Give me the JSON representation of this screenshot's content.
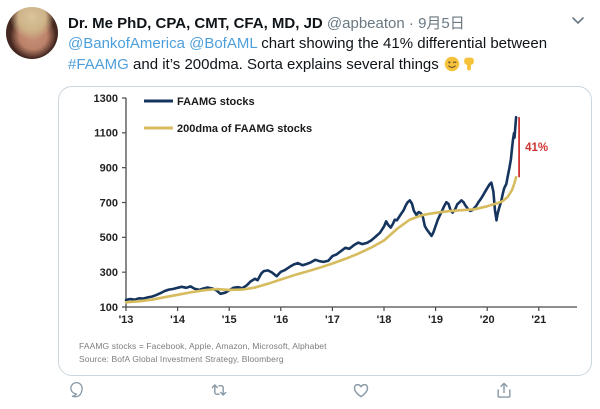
{
  "tweet": {
    "author_name": "Dr. Me PhD, CPA, CMT, CFA, MD, JD",
    "author_handle": "@apbeaton",
    "separator": "·",
    "date": "9月5日",
    "body": {
      "mentions": "@BankofAmerica @BofAML",
      "text_after_mentions": " chart showing the 41% differential between ",
      "hashtag": "#FAAMG",
      "text_after_hashtag": " and it’s 200dma. Sorta explains several things ",
      "emojis": [
        "winking-face",
        "backhand-index-pointing-down"
      ]
    }
  },
  "chart_data": {
    "type": "line",
    "title": "",
    "xlabel": "",
    "ylabel": "",
    "ylim": [
      100,
      1300
    ],
    "xlim": [
      2013,
      2021.75
    ],
    "grid": false,
    "legend_position": "top-left",
    "y_ticks": [
      1300,
      1100,
      900,
      700,
      500,
      300,
      100
    ],
    "x_tick_labels": [
      "'13",
      "'14",
      "'15",
      "'16",
      "'17",
      "'18",
      "'19",
      "'20",
      "'21"
    ],
    "x_tick_years": [
      2013,
      2014,
      2015,
      2016,
      2017,
      2018,
      2019,
      2020,
      2021
    ],
    "legend": [
      {
        "label": "FAAMG stocks",
        "color": "#16355e"
      },
      {
        "label": "200dma of FAAMG stocks",
        "color": "#d6bc5e"
      }
    ],
    "series": [
      {
        "name": "FAAMG stocks",
        "color": "#16355e",
        "width": 2.6,
        "points": [
          [
            2013.0,
            140
          ],
          [
            2013.08,
            146
          ],
          [
            2013.17,
            142
          ],
          [
            2013.25,
            150
          ],
          [
            2013.33,
            148
          ],
          [
            2013.42,
            155
          ],
          [
            2013.5,
            160
          ],
          [
            2013.58,
            168
          ],
          [
            2013.67,
            180
          ],
          [
            2013.75,
            192
          ],
          [
            2013.83,
            200
          ],
          [
            2013.92,
            204
          ],
          [
            2014.0,
            210
          ],
          [
            2014.08,
            216
          ],
          [
            2014.17,
            210
          ],
          [
            2014.25,
            218
          ],
          [
            2014.33,
            205
          ],
          [
            2014.42,
            198
          ],
          [
            2014.5,
            206
          ],
          [
            2014.58,
            212
          ],
          [
            2014.67,
            206
          ],
          [
            2014.75,
            196
          ],
          [
            2014.83,
            176
          ],
          [
            2014.92,
            182
          ],
          [
            2015.0,
            196
          ],
          [
            2015.08,
            210
          ],
          [
            2015.17,
            214
          ],
          [
            2015.25,
            208
          ],
          [
            2015.33,
            222
          ],
          [
            2015.42,
            248
          ],
          [
            2015.5,
            262
          ],
          [
            2015.55,
            254
          ],
          [
            2015.62,
            292
          ],
          [
            2015.67,
            306
          ],
          [
            2015.75,
            310
          ],
          [
            2015.83,
            298
          ],
          [
            2015.92,
            276
          ],
          [
            2016.0,
            302
          ],
          [
            2016.08,
            312
          ],
          [
            2016.17,
            330
          ],
          [
            2016.25,
            344
          ],
          [
            2016.33,
            352
          ],
          [
            2016.42,
            340
          ],
          [
            2016.5,
            347
          ],
          [
            2016.58,
            356
          ],
          [
            2016.67,
            371
          ],
          [
            2016.75,
            363
          ],
          [
            2016.83,
            359
          ],
          [
            2016.92,
            366
          ],
          [
            2017.0,
            392
          ],
          [
            2017.08,
            402
          ],
          [
            2017.17,
            422
          ],
          [
            2017.25,
            440
          ],
          [
            2017.33,
            434
          ],
          [
            2017.42,
            456
          ],
          [
            2017.5,
            470
          ],
          [
            2017.58,
            461
          ],
          [
            2017.67,
            468
          ],
          [
            2017.75,
            482
          ],
          [
            2017.83,
            502
          ],
          [
            2017.92,
            526
          ],
          [
            2018.0,
            562
          ],
          [
            2018.04,
            592
          ],
          [
            2018.08,
            572
          ],
          [
            2018.13,
            556
          ],
          [
            2018.17,
            576
          ],
          [
            2018.21,
            601
          ],
          [
            2018.25,
            598
          ],
          [
            2018.29,
            616
          ],
          [
            2018.33,
            634
          ],
          [
            2018.38,
            655
          ],
          [
            2018.42,
            683
          ],
          [
            2018.46,
            702
          ],
          [
            2018.5,
            712
          ],
          [
            2018.54,
            694
          ],
          [
            2018.58,
            652
          ],
          [
            2018.63,
            628
          ],
          [
            2018.67,
            645
          ],
          [
            2018.71,
            640
          ],
          [
            2018.75,
            622
          ],
          [
            2018.79,
            565
          ],
          [
            2018.83,
            545
          ],
          [
            2018.88,
            525
          ],
          [
            2018.92,
            508
          ],
          [
            2018.96,
            530
          ],
          [
            2019.0,
            565
          ],
          [
            2019.04,
            600
          ],
          [
            2019.08,
            625
          ],
          [
            2019.13,
            655
          ],
          [
            2019.17,
            682
          ],
          [
            2019.21,
            702
          ],
          [
            2019.25,
            692
          ],
          [
            2019.29,
            655
          ],
          [
            2019.33,
            642
          ],
          [
            2019.38,
            662
          ],
          [
            2019.42,
            690
          ],
          [
            2019.46,
            700
          ],
          [
            2019.5,
            712
          ],
          [
            2019.54,
            702
          ],
          [
            2019.58,
            682
          ],
          [
            2019.63,
            662
          ],
          [
            2019.67,
            652
          ],
          [
            2019.71,
            656
          ],
          [
            2019.75,
            668
          ],
          [
            2019.79,
            682
          ],
          [
            2019.83,
            702
          ],
          [
            2019.88,
            722
          ],
          [
            2019.92,
            742
          ],
          [
            2019.96,
            762
          ],
          [
            2020.0,
            782
          ],
          [
            2020.04,
            802
          ],
          [
            2020.08,
            814
          ],
          [
            2020.12,
            762
          ],
          [
            2020.15,
            658
          ],
          [
            2020.18,
            598
          ],
          [
            2020.2,
            632
          ],
          [
            2020.23,
            668
          ],
          [
            2020.27,
            706
          ],
          [
            2020.3,
            748
          ],
          [
            2020.33,
            782
          ],
          [
            2020.37,
            806
          ],
          [
            2020.4,
            852
          ],
          [
            2020.43,
            898
          ],
          [
            2020.46,
            948
          ],
          [
            2020.48,
            1010
          ],
          [
            2020.5,
            1062
          ],
          [
            2020.52,
            1098
          ],
          [
            2020.53,
            1072
          ],
          [
            2020.56,
            1190
          ]
        ]
      },
      {
        "name": "200dma of FAAMG stocks",
        "color": "#d6bc5e",
        "width": 2.6,
        "points": [
          [
            2013.0,
            127
          ],
          [
            2013.25,
            133
          ],
          [
            2013.5,
            142
          ],
          [
            2013.75,
            156
          ],
          [
            2014.0,
            170
          ],
          [
            2014.25,
            184
          ],
          [
            2014.5,
            196
          ],
          [
            2014.75,
            203
          ],
          [
            2015.0,
            198
          ],
          [
            2015.25,
            200
          ],
          [
            2015.5,
            212
          ],
          [
            2015.75,
            233
          ],
          [
            2016.0,
            258
          ],
          [
            2016.25,
            282
          ],
          [
            2016.5,
            303
          ],
          [
            2016.75,
            325
          ],
          [
            2017.0,
            350
          ],
          [
            2017.25,
            376
          ],
          [
            2017.5,
            406
          ],
          [
            2017.75,
            441
          ],
          [
            2018.0,
            482
          ],
          [
            2018.25,
            548
          ],
          [
            2018.5,
            602
          ],
          [
            2018.75,
            628
          ],
          [
            2019.0,
            641
          ],
          [
            2019.25,
            650
          ],
          [
            2019.5,
            656
          ],
          [
            2019.75,
            661
          ],
          [
            2020.0,
            678
          ],
          [
            2020.1,
            688
          ],
          [
            2020.2,
            696
          ],
          [
            2020.3,
            708
          ],
          [
            2020.4,
            733
          ],
          [
            2020.48,
            772
          ],
          [
            2020.53,
            812
          ],
          [
            2020.56,
            845
          ]
        ]
      }
    ],
    "annotation": {
      "label": "41%",
      "color": "#cf3530",
      "x": 2020.56,
      "y_top": 1190,
      "y_bottom": 845
    },
    "footnotes": [
      "FAAMG stocks = Facebook, Apple, Amazon, Microsoft, Alphabet",
      "Source: BofA Global Investment Strategy, Bloomberg"
    ],
    "axis_color": "#4a4a4a",
    "tick_label_color": "#222222"
  },
  "actions": [
    {
      "name": "reply"
    },
    {
      "name": "retweet"
    },
    {
      "name": "like"
    },
    {
      "name": "share"
    }
  ],
  "colors": {
    "link_blue": "#4d9fdb",
    "text_gray": "#697882",
    "icon_gray": "#8899a6",
    "card_border": "#ccd6dd"
  }
}
